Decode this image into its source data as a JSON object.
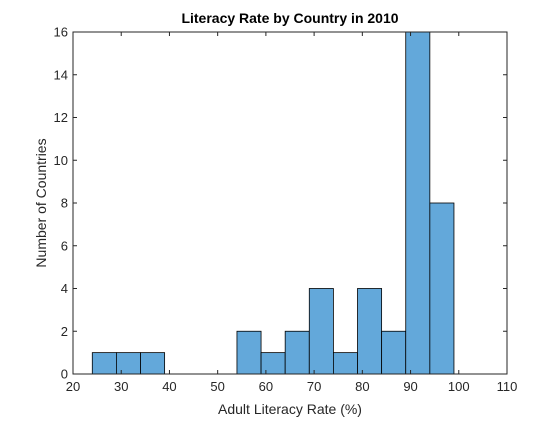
{
  "chart_data": {
    "type": "bar",
    "title": "Literacy Rate by Country in 2010",
    "xlabel": "Adult Literacy Rate (%)",
    "ylabel": "Number of Countries",
    "bin_edges": [
      24,
      29,
      34,
      39,
      44,
      49,
      54,
      59,
      64,
      69,
      74,
      79,
      84,
      89,
      94,
      99
    ],
    "bin_width": 5,
    "values": [
      1,
      1,
      1,
      0,
      0,
      0,
      2,
      1,
      2,
      4,
      1,
      4,
      2,
      16,
      8
    ],
    "xlim": [
      20,
      110
    ],
    "ylim": [
      0,
      16
    ],
    "xticks": [
      20,
      30,
      40,
      50,
      60,
      70,
      80,
      90,
      100,
      110
    ],
    "yticks": [
      0,
      2,
      4,
      6,
      8,
      10,
      12,
      14,
      16
    ],
    "grid": false,
    "colors": {
      "bar_fill": "#63a8da",
      "bar_edge": "#000000",
      "axis": "#262626",
      "text": "#262626"
    }
  }
}
